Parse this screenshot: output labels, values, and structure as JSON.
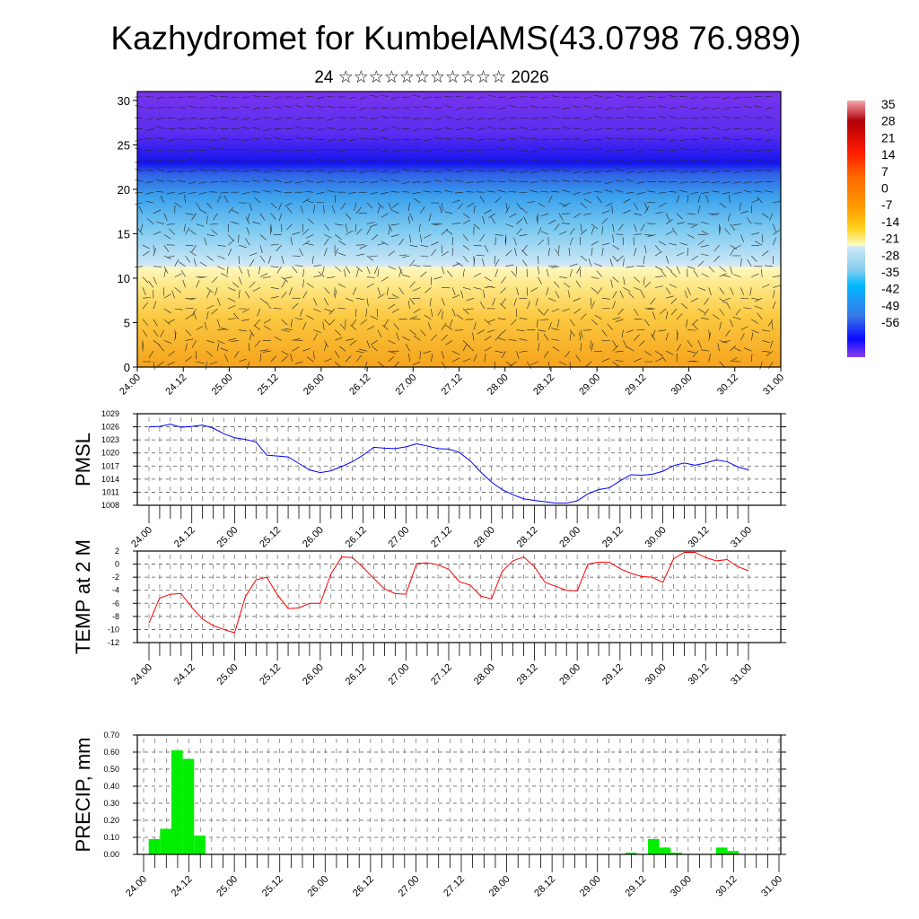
{
  "title": "Kazhydromet for KumbelAMS(43.0798 76.989)",
  "subtitle": "24 ☆☆☆☆☆☆☆☆☆☆☆ 2026",
  "colors": {
    "pmsl_line": "#0000ff",
    "temp_line": "#ff0000",
    "precip_bar": "#00ee00"
  },
  "colorbar": {
    "labels": [
      "35",
      "28",
      "21",
      "14",
      "7",
      "0",
      "-7",
      "-14",
      "-21",
      "-28",
      "-35",
      "-42",
      "-49",
      "-56"
    ]
  },
  "chart_data": [
    {
      "type": "heatmap",
      "name": "cross-section temperature and wind",
      "x_tick_labels": [
        "24.00",
        "24.12",
        "25.00",
        "25.12",
        "26.00",
        "26.12",
        "27.00",
        "27.12",
        "28.00",
        "28.12",
        "29.00",
        "29.12",
        "30.00",
        "30.12",
        "31.00"
      ],
      "y_tick_labels": [
        "0",
        "5",
        "10",
        "15",
        "20",
        "25",
        "30"
      ],
      "ylim": [
        0,
        31
      ],
      "colorbar_range": [
        -56,
        35
      ]
    },
    {
      "type": "line",
      "ylabel": "PMSL",
      "ylim": [
        1008,
        1029
      ],
      "y_tick_labels": [
        "1008",
        "1011",
        "1014",
        "1017",
        "1020",
        "1023",
        "1026",
        "1029"
      ],
      "x_tick_labels": [
        "24.00",
        "24.12",
        "25.00",
        "25.12",
        "26.00",
        "26.12",
        "27.00",
        "27.12",
        "28.00",
        "28.12",
        "29.00",
        "29.12",
        "30.00",
        "30.12",
        "31.00"
      ],
      "values": [
        1026,
        1026.1,
        1026.6,
        1025.9,
        1026.1,
        1026.4,
        1025.7,
        1024.4,
        1023.5,
        1023.1,
        1022.5,
        1019.5,
        1019.3,
        1019.1,
        1017.6,
        1016.1,
        1015.5,
        1015.9,
        1016.9,
        1018.0,
        1019.5,
        1021.3,
        1021.1,
        1021.0,
        1021.4,
        1022.1,
        1021.6,
        1021.0,
        1020.9,
        1020.1,
        1018.2,
        1015.6,
        1013.3,
        1011.6,
        1010.4,
        1009.5,
        1009.1,
        1008.8,
        1008.5,
        1008.5,
        1009.0,
        1010.6,
        1011.6,
        1012.0,
        1013.6,
        1015.0,
        1014.9,
        1015.1,
        1015.8,
        1017.1,
        1017.7,
        1017.2,
        1017.7,
        1018.4,
        1018.0,
        1016.8,
        1016.1
      ],
      "grid": true
    },
    {
      "type": "line",
      "ylabel": "TEMP at 2 M",
      "ylim": [
        -12,
        2
      ],
      "y_tick_labels": [
        "-12",
        "-10",
        "-8",
        "-6",
        "-4",
        "-2",
        "0",
        "2"
      ],
      "x_tick_labels": [
        "24.00",
        "24.12",
        "25.00",
        "25.12",
        "26.00",
        "26.12",
        "27.00",
        "27.12",
        "28.00",
        "28.12",
        "29.00",
        "29.12",
        "30.00",
        "30.12",
        "31.00"
      ],
      "values": [
        -9,
        -5.2,
        -4.6,
        -4.5,
        -6.6,
        -8.4,
        -9.4,
        -10.0,
        -10.5,
        -5.0,
        -2.4,
        -2.0,
        -4.7,
        -6.8,
        -6.7,
        -6.0,
        -6.0,
        -1.5,
        1.1,
        1.0,
        -0.5,
        -2.2,
        -3.8,
        -4.5,
        -4.6,
        0.1,
        0.2,
        -0.1,
        -0.8,
        -2.7,
        -3.2,
        -4.9,
        -5.3,
        -1.1,
        0.5,
        1.1,
        -0.4,
        -2.8,
        -3.4,
        -4.0,
        -4.1,
        0.0,
        0.3,
        0.3,
        -0.7,
        -1.4,
        -1.9,
        -2.0,
        -2.8,
        0.8,
        1.8,
        1.8,
        1.0,
        0.5,
        0.7,
        -0.4,
        -1.0
      ],
      "grid": true
    },
    {
      "type": "bar",
      "ylabel": "PRECIP, mm",
      "ylim": [
        0,
        0.7
      ],
      "y_tick_labels": [
        "0.00",
        "0.10",
        "0.20",
        "0.30",
        "0.40",
        "0.50",
        "0.60",
        "0.70"
      ],
      "x_tick_labels": [
        "24.00",
        "24.12",
        "25.00",
        "25.12",
        "26.00",
        "26.12",
        "27.00",
        "27.12",
        "28.00",
        "28.12",
        "29.00",
        "29.12",
        "30.00",
        "30.12",
        "31.00"
      ],
      "values": [
        0.09,
        0.15,
        0.61,
        0.56,
        0.11,
        0,
        0,
        0,
        0,
        0,
        0,
        0,
        0,
        0,
        0,
        0,
        0,
        0,
        0,
        0,
        0,
        0,
        0,
        0,
        0,
        0,
        0,
        0,
        0,
        0,
        0,
        0,
        0,
        0,
        0,
        0,
        0,
        0,
        0,
        0,
        0,
        0,
        0.01,
        0,
        0.09,
        0.04,
        0.01,
        0,
        0,
        0,
        0.04,
        0.02,
        0,
        0,
        0,
        0,
        0
      ],
      "grid": true
    }
  ]
}
